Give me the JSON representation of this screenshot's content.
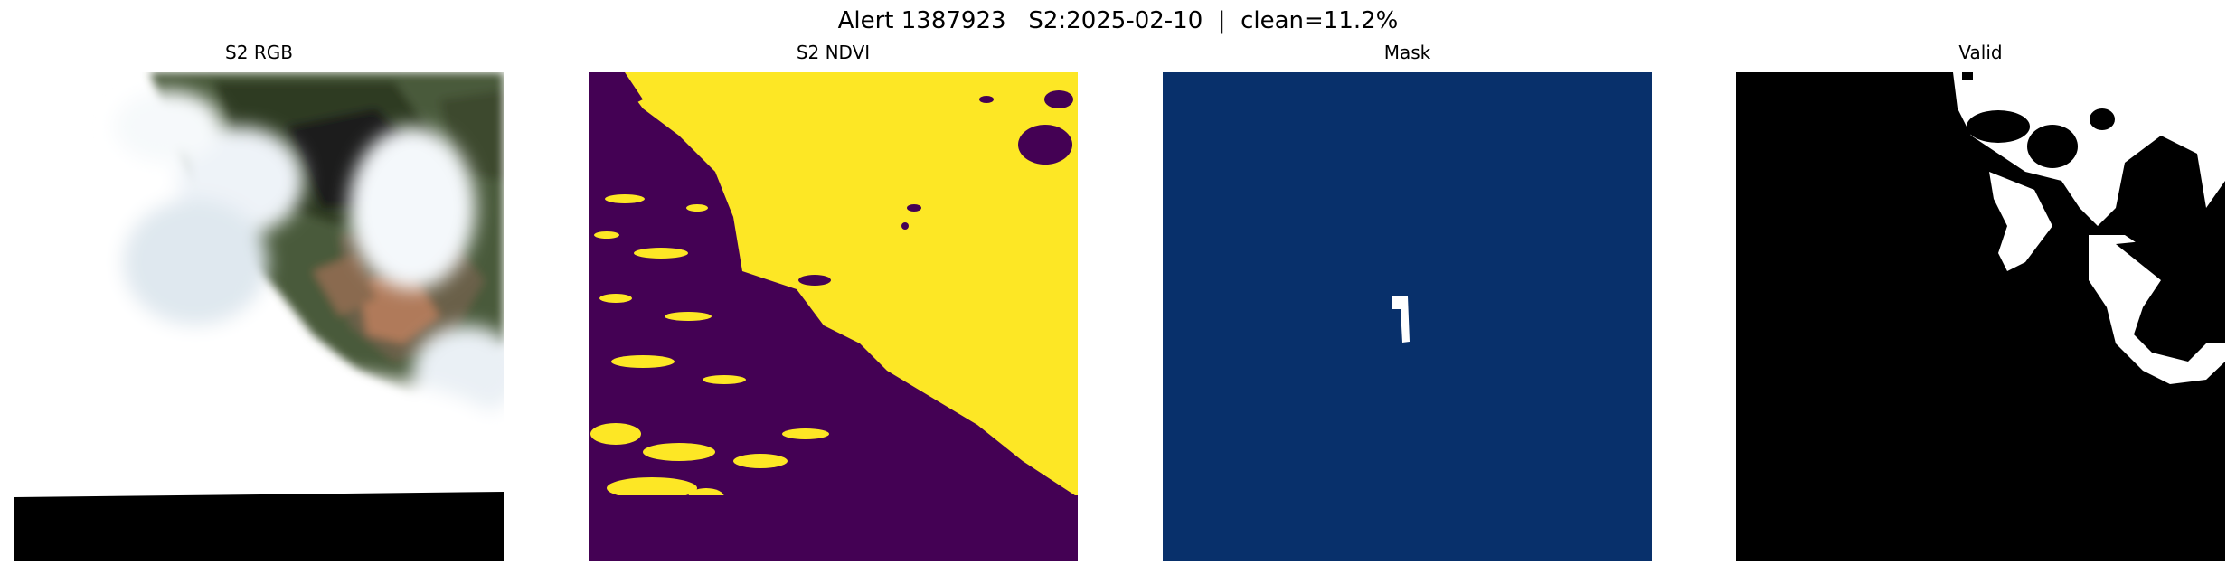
{
  "figure": {
    "suptitle": "Alert 1387923   S2:2025-02-10  |  clean=11.2%"
  },
  "panels": [
    {
      "title": "S2 RGB"
    },
    {
      "title": "S2 NDVI"
    },
    {
      "title": "Mask"
    },
    {
      "title": "Valid"
    }
  ],
  "colors": {
    "ndvi_low": "#440154",
    "ndvi_high": "#fde725",
    "mask_background": "#08306b",
    "mask_foreground": "#ffffff",
    "valid_false": "#000000",
    "valid_true": "#ffffff"
  }
}
